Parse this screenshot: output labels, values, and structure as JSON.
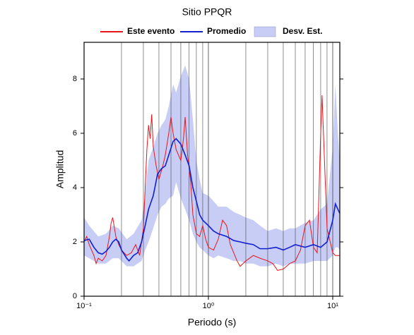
{
  "chart_data": {
    "type": "line",
    "title": "Sitio PPQR",
    "xlabel": "Periodo (s)",
    "ylabel": "Amplitud",
    "xscale": "log",
    "xlim": [
      0.1,
      11.4
    ],
    "ylim": [
      0,
      9.35
    ],
    "xticks": [
      {
        "value": 0.1,
        "label": "10⁻¹"
      },
      {
        "value": 1,
        "label": "10⁰"
      },
      {
        "value": 10,
        "label": "10¹"
      }
    ],
    "yticks": [
      0,
      2,
      4,
      6,
      8
    ],
    "grid": true,
    "legend": "top",
    "series": [
      {
        "name": "Este evento",
        "color": "#e8161b",
        "x": [
          0.1,
          0.105,
          0.11,
          0.12,
          0.125,
          0.13,
          0.14,
          0.15,
          0.16,
          0.165,
          0.17,
          0.18,
          0.19,
          0.2,
          0.22,
          0.24,
          0.26,
          0.28,
          0.3,
          0.31,
          0.32,
          0.33,
          0.34,
          0.35,
          0.36,
          0.38,
          0.4,
          0.43,
          0.45,
          0.48,
          0.5,
          0.52,
          0.55,
          0.6,
          0.63,
          0.65,
          0.68,
          0.72,
          0.75,
          0.8,
          0.85,
          0.9,
          0.95,
          1.0,
          1.1,
          1.2,
          1.3,
          1.4,
          1.5,
          1.7,
          1.8,
          2.0,
          2.3,
          2.6,
          3.0,
          3.3,
          3.6,
          4.0,
          4.5,
          5.0,
          5.5,
          6.0,
          6.5,
          7.0,
          7.5,
          8.0,
          8.2,
          8.5,
          9.0,
          10.0,
          10.5,
          11.4
        ],
        "values": [
          2.0,
          2.2,
          1.9,
          1.5,
          1.2,
          1.4,
          1.3,
          1.5,
          2.2,
          2.7,
          2.9,
          2.2,
          1.9,
          1.7,
          1.5,
          1.6,
          1.9,
          1.5,
          2.5,
          4.0,
          5.4,
          6.3,
          5.8,
          6.7,
          5.5,
          4.8,
          4.3,
          4.8,
          5.2,
          6.0,
          6.6,
          6.0,
          5.4,
          5.0,
          5.8,
          6.6,
          5.2,
          4.2,
          3.0,
          2.3,
          2.2,
          2.6,
          2.1,
          1.8,
          1.7,
          2.1,
          2.8,
          2.6,
          1.9,
          1.3,
          1.1,
          1.3,
          1.5,
          1.4,
          1.3,
          1.2,
          0.95,
          1.0,
          1.2,
          1.3,
          1.7,
          2.6,
          2.8,
          1.8,
          1.6,
          6.0,
          7.4,
          5.5,
          2.5,
          1.6,
          1.5,
          1.5
        ]
      },
      {
        "name": "Promedio",
        "color": "#1020d0",
        "x": [
          0.1,
          0.11,
          0.12,
          0.13,
          0.14,
          0.15,
          0.16,
          0.17,
          0.18,
          0.19,
          0.2,
          0.22,
          0.23,
          0.25,
          0.27,
          0.29,
          0.31,
          0.33,
          0.36,
          0.39,
          0.42,
          0.45,
          0.48,
          0.52,
          0.55,
          0.6,
          0.65,
          0.7,
          0.75,
          0.8,
          0.85,
          0.9,
          1.0,
          1.1,
          1.2,
          1.4,
          1.6,
          1.8,
          2.0,
          2.3,
          2.6,
          3.0,
          3.5,
          4.0,
          4.5,
          5.0,
          6.0,
          7.0,
          8.0,
          9.0,
          10.0,
          10.5,
          11.0,
          11.4
        ],
        "values": [
          2.05,
          2.1,
          1.8,
          1.6,
          1.55,
          1.65,
          1.8,
          2.0,
          2.1,
          2.0,
          1.7,
          1.4,
          1.3,
          1.5,
          1.6,
          2.0,
          2.6,
          3.2,
          3.7,
          4.5,
          4.7,
          4.8,
          5.2,
          5.7,
          5.8,
          5.6,
          5.2,
          4.8,
          4.0,
          3.5,
          3.0,
          2.8,
          2.6,
          2.4,
          2.3,
          2.2,
          2.05,
          2.0,
          1.95,
          1.9,
          1.75,
          1.75,
          1.8,
          1.7,
          1.8,
          1.9,
          1.8,
          1.9,
          1.8,
          2.0,
          2.8,
          3.4,
          3.2,
          3.05
        ]
      },
      {
        "name": "Desv. Est.",
        "color": "#c8cdf5",
        "x": [
          0.1,
          0.11,
          0.13,
          0.15,
          0.17,
          0.19,
          0.22,
          0.25,
          0.29,
          0.31,
          0.33,
          0.36,
          0.39,
          0.42,
          0.45,
          0.48,
          0.52,
          0.55,
          0.6,
          0.65,
          0.7,
          0.75,
          0.8,
          0.85,
          0.9,
          1.0,
          1.1,
          1.2,
          1.4,
          1.6,
          1.8,
          2.0,
          2.3,
          2.6,
          3.0,
          3.5,
          4.0,
          4.5,
          5.0,
          6.0,
          7.0,
          8.0,
          9.0,
          10.0,
          10.5,
          11.0,
          11.4
        ],
        "upper": [
          2.9,
          2.6,
          2.2,
          2.3,
          2.6,
          2.5,
          2.1,
          2.3,
          2.8,
          3.8,
          5.0,
          5.5,
          6.0,
          6.3,
          6.5,
          7.0,
          7.8,
          7.5,
          8.1,
          8.5,
          8.0,
          6.5,
          5.0,
          4.3,
          3.8,
          3.7,
          3.5,
          3.3,
          3.3,
          3.1,
          3.0,
          2.9,
          2.8,
          2.6,
          2.4,
          2.5,
          2.4,
          2.5,
          2.5,
          2.7,
          2.8,
          3.2,
          3.4,
          5.5,
          7.8,
          6.0,
          5.0
        ],
        "lower": [
          1.5,
          1.4,
          1.2,
          1.2,
          1.4,
          1.4,
          1.1,
          1.1,
          1.3,
          1.7,
          2.0,
          2.5,
          3.0,
          3.3,
          3.4,
          3.6,
          3.7,
          4.2,
          3.6,
          3.2,
          2.8,
          2.3,
          2.0,
          1.8,
          1.7,
          1.5,
          1.4,
          1.5,
          1.4,
          1.3,
          1.3,
          1.2,
          1.2,
          1.1,
          1.1,
          1.2,
          1.1,
          1.2,
          1.2,
          1.2,
          1.3,
          1.3,
          1.3,
          1.5,
          1.8,
          1.8,
          1.7
        ]
      }
    ]
  }
}
